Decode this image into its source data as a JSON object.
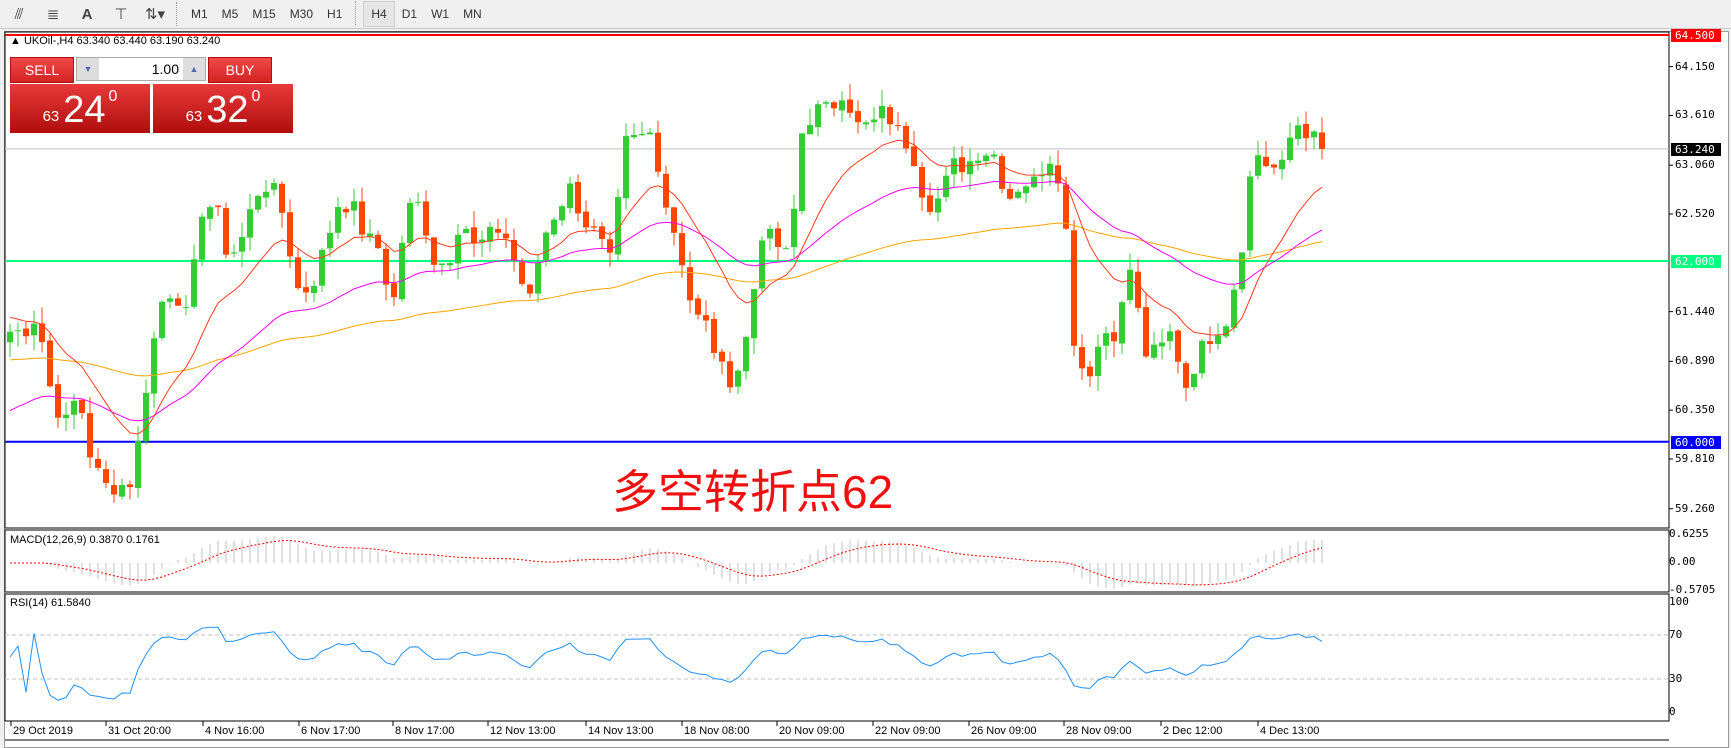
{
  "toolbar": {
    "icons": [
      "indicator-e-icon",
      "fibonacci-f-icon",
      "text-a-icon",
      "text-label-t-icon",
      "arrows-icon"
    ],
    "timeframes": [
      "M1",
      "M5",
      "M15",
      "M30",
      "H1",
      "H4",
      "D1",
      "W1",
      "MN"
    ],
    "active": "H4"
  },
  "chart": {
    "symbol_line": "UKOil-,H4  63.340 63.440 63.190 63.240",
    "sell_label": "SELL",
    "buy_label": "BUY",
    "lot": "1.00",
    "bid_big": "63",
    "bid_small": "24",
    "bid_sup": "0",
    "ask_big": "63",
    "ask_small": "32",
    "ask_sup": "0",
    "annotation": "多空转折点62",
    "price_axis": [
      "64.150",
      "63.610",
      "63.060",
      "62.520",
      "61.440",
      "60.890",
      "60.350",
      "59.810",
      "59.260"
    ],
    "lines": [
      {
        "price": "64.500",
        "color": "#ff0000"
      },
      {
        "price": "62.000",
        "color": "#00ff7f"
      },
      {
        "price": "60.000",
        "color": "#0000ff"
      },
      {
        "price": "63.240",
        "color": "#000000"
      }
    ],
    "colors": {
      "bull": "#32cd32",
      "bear": "#ff4500",
      "ma_fast": "#ff3b1f",
      "ma_mid": "#ff00ff",
      "ma_slow": "#ffa500"
    },
    "dates": [
      "29 Oct 2019",
      "31 Oct 20:00",
      "4 Nov 16:00",
      "6 Nov 17:00",
      "8 Nov 17:00",
      "12 Nov 13:00",
      "14 Nov 13:00",
      "18 Nov 08:00",
      "20 Nov 09:00",
      "22 Nov 09:00",
      "26 Nov 09:00",
      "28 Nov 09:00",
      "2 Dec 12:00",
      "4 Dec 13:00"
    ]
  },
  "macd": {
    "label": "MACD(12,26,9) 0.3870 0.1761",
    "axis": [
      "0.6255",
      "0.00",
      "-0.5705"
    ]
  },
  "rsi": {
    "label": "RSI(14) 61.5840",
    "axis": [
      "100",
      "70",
      "30",
      "0"
    ]
  },
  "chart_data": {
    "type": "candlestick",
    "ylim": [
      59.07,
      64.6
    ],
    "closes": [
      61.22,
      61.22,
      61.41,
      60.55,
      60.18,
      60.55,
      59.76,
      59.51,
      59.51,
      59.57,
      60.67,
      61.53,
      61.71,
      61.35,
      62.57,
      62.63,
      62.02,
      62.26,
      62.75,
      62.87,
      62.51,
      61.69,
      61.69,
      62.14,
      62.63,
      62.63,
      62.26,
      62.14,
      61.47,
      62.57,
      62.63,
      62.02,
      61.96,
      62.51,
      62.14,
      62.26,
      62.39,
      61.96,
      61.53,
      62.26,
      62.57,
      62.81,
      62.45,
      62.26,
      61.96,
      63.3,
      63.36,
      63.42,
      62.63,
      62.14,
      61.41,
      61.28,
      60.8,
      60.67,
      61.22,
      62.32,
      62.2,
      62.02,
      63.49,
      63.67,
      63.67,
      63.91,
      63.49,
      63.49,
      63.67,
      63.42,
      63.24,
      62.63,
      62.69,
      63.06,
      63.06,
      63.24,
      63.18,
      62.69,
      62.87,
      62.87,
      63.18,
      62.87,
      60.86,
      60.8,
      61.22,
      61.22,
      61.95,
      60.98,
      60.98,
      61.22,
      60.61,
      60.98,
      61.22,
      61.35,
      62.02,
      63.24,
      63.06,
      62.99,
      63.55,
      63.42,
      63.24
    ]
  }
}
